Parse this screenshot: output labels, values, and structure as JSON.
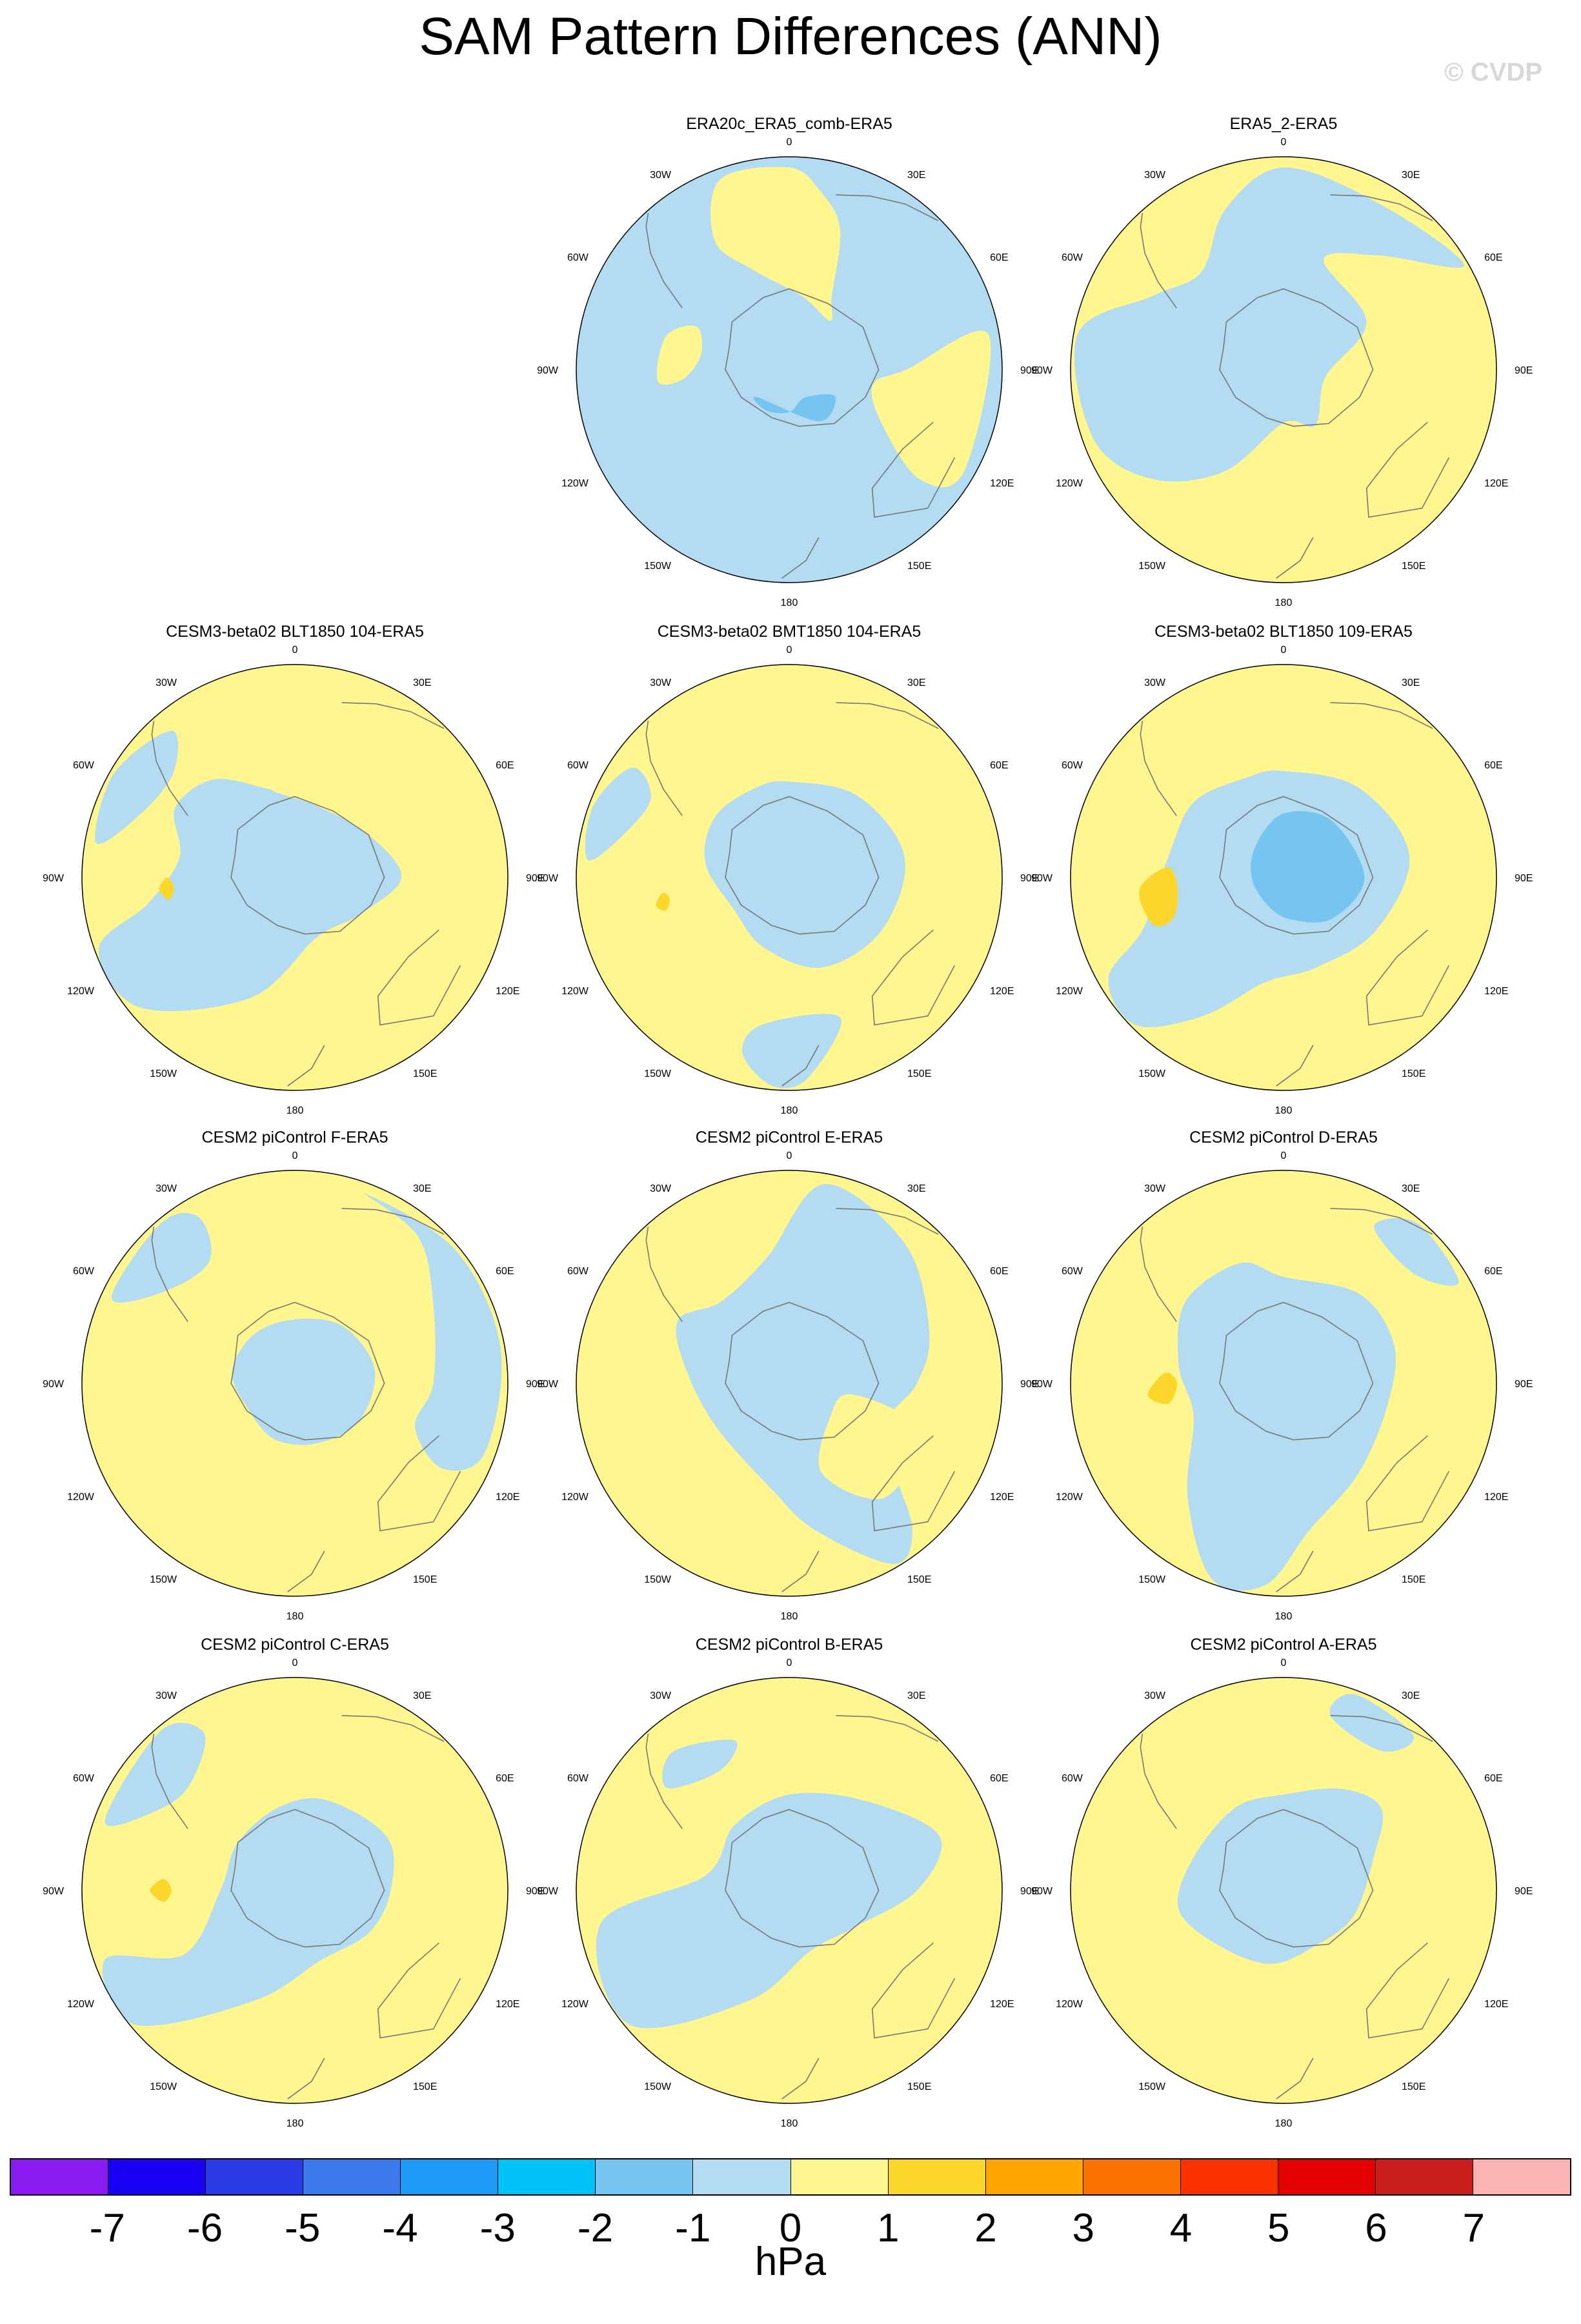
{
  "title": "SAM Pattern Differences (ANN)",
  "watermark": "© CVDP",
  "colors": {
    "neg": "#b3dcf2",
    "pos": "#fff68f",
    "neg2": "#75c5f0",
    "pos2": "#fdd62c",
    "coast": "#777777"
  },
  "lon_labels": [
    "0",
    "30E",
    "60E",
    "90E",
    "120E",
    "150E",
    "180",
    "150W",
    "120W",
    "90W",
    "60W",
    "30W"
  ],
  "panels": [
    {
      "title": "ERA20c_ERA5_comb-ERA5",
      "base": "neg",
      "blobs": [
        {
          "c": "pos",
          "pts": [
            [
              0,
              0.95
            ],
            [
              10,
              0.85
            ],
            [
              20,
              0.7
            ],
            [
              30,
              0.4
            ],
            [
              40,
              0.3
            ],
            [
              10,
              0.35
            ],
            [
              -20,
              0.5
            ],
            [
              -30,
              0.7
            ],
            [
              -20,
              0.95
            ]
          ]
        },
        {
          "c": "pos",
          "pts": [
            [
              80,
              0.95
            ],
            [
              90,
              0.55
            ],
            [
              100,
              0.4
            ],
            [
              120,
              0.5
            ],
            [
              130,
              0.8
            ],
            [
              120,
              0.95
            ]
          ]
        },
        {
          "c": "pos",
          "pts": [
            [
              -95,
              0.5
            ],
            [
              -80,
              0.42
            ],
            [
              -65,
              0.48
            ],
            [
              -75,
              0.6
            ],
            [
              -95,
              0.62
            ]
          ]
        },
        {
          "c": "neg2",
          "pts": [
            [
              120,
              0.25
            ],
            [
              150,
              0.15
            ],
            [
              180,
              0.2
            ],
            [
              -150,
              0.22
            ],
            [
              -130,
              0.2
            ],
            [
              150,
              0.28
            ]
          ]
        }
      ]
    },
    {
      "title": "ERA5_2-ERA5",
      "base": "pos",
      "blobs": [
        {
          "c": "neg",
          "pts": [
            [
              0,
              0.95
            ],
            [
              30,
              0.9
            ],
            [
              60,
              0.98
            ],
            [
              40,
              0.7
            ],
            [
              20,
              0.55
            ],
            [
              60,
              0.45
            ],
            [
              100,
              0.2
            ],
            [
              150,
              0.3
            ],
            [
              180,
              0.25
            ],
            [
              -150,
              0.55
            ],
            [
              -130,
              0.8
            ],
            [
              -110,
              0.95
            ],
            [
              -80,
              0.98
            ],
            [
              -60,
              0.7
            ],
            [
              -40,
              0.6
            ],
            [
              -20,
              0.8
            ]
          ]
        }
      ]
    },
    {
      "title": "CESM3-beta02 BLT1850 104-ERA5",
      "base": "pos",
      "blobs": [
        {
          "c": "neg",
          "pts": [
            [
              -10,
              0.4
            ],
            [
              20,
              0.35
            ],
            [
              60,
              0.4
            ],
            [
              90,
              0.5
            ],
            [
              120,
              0.35
            ],
            [
              160,
              0.3
            ],
            [
              -160,
              0.6
            ],
            [
              -130,
              0.95
            ],
            [
              -110,
              0.98
            ],
            [
              -100,
              0.7
            ],
            [
              -80,
              0.55
            ],
            [
              -60,
              0.65
            ],
            [
              -40,
              0.6
            ],
            [
              -20,
              0.45
            ]
          ]
        },
        {
          "c": "neg",
          "pts": [
            [
              -60,
              0.98
            ],
            [
              -40,
              0.9
            ],
            [
              -50,
              0.75
            ],
            [
              -70,
              0.8
            ],
            [
              -80,
              0.95
            ]
          ]
        },
        {
          "c": "pos2",
          "pts": [
            [
              -100,
              0.6
            ],
            [
              -95,
              0.57
            ],
            [
              -90,
              0.6
            ],
            [
              -95,
              0.64
            ]
          ]
        }
      ]
    },
    {
      "title": "CESM3-beta02 BMT1850 104-ERA5",
      "base": "pos",
      "blobs": [
        {
          "c": "neg",
          "pts": [
            [
              0,
              0.45
            ],
            [
              40,
              0.5
            ],
            [
              80,
              0.55
            ],
            [
              120,
              0.5
            ],
            [
              160,
              0.45
            ],
            [
              -160,
              0.35
            ],
            [
              -120,
              0.3
            ],
            [
              -80,
              0.4
            ],
            [
              -50,
              0.45
            ],
            [
              -20,
              0.45
            ]
          ]
        },
        {
          "c": "neg",
          "pts": [
            [
              160,
              0.7
            ],
            [
              175,
              0.95
            ],
            [
              -175,
              0.98
            ],
            [
              -165,
              0.85
            ],
            [
              -170,
              0.7
            ]
          ]
        },
        {
          "c": "neg",
          "pts": [
            [
              -70,
              0.98
            ],
            [
              -55,
              0.9
            ],
            [
              -60,
              0.75
            ],
            [
              -75,
              0.8
            ],
            [
              -85,
              0.95
            ]
          ]
        },
        {
          "c": "pos2",
          "pts": [
            [
              -105,
              0.6
            ],
            [
              -100,
              0.57
            ],
            [
              -97,
              0.6
            ],
            [
              -102,
              0.64
            ]
          ]
        }
      ]
    },
    {
      "title": "CESM3-beta02 BLT1850 109-ERA5",
      "base": "pos",
      "blobs": [
        {
          "c": "neg",
          "pts": [
            [
              0,
              0.5
            ],
            [
              40,
              0.55
            ],
            [
              80,
              0.6
            ],
            [
              120,
              0.5
            ],
            [
              160,
              0.45
            ],
            [
              -170,
              0.5
            ],
            [
              -150,
              0.75
            ],
            [
              -135,
              0.98
            ],
            [
              -120,
              0.95
            ],
            [
              -110,
              0.7
            ],
            [
              -80,
              0.55
            ],
            [
              -50,
              0.55
            ],
            [
              -20,
              0.5
            ]
          ]
        },
        {
          "c": "neg2",
          "pts": [
            [
              0,
              0.3
            ],
            [
              40,
              0.35
            ],
            [
              90,
              0.38
            ],
            [
              130,
              0.3
            ],
            [
              170,
              0.2
            ],
            [
              -150,
              0.15
            ],
            [
              -90,
              0.15
            ],
            [
              -40,
              0.2
            ]
          ]
        },
        {
          "c": "pos2",
          "pts": [
            [
              -110,
              0.55
            ],
            [
              -95,
              0.5
            ],
            [
              -85,
              0.55
            ],
            [
              -95,
              0.68
            ],
            [
              -110,
              0.65
            ]
          ]
        }
      ]
    },
    {
      "title": "CESM2 piControl F-ERA5",
      "base": "pos",
      "blobs": [
        {
          "c": "neg",
          "pts": [
            [
              20,
              0.95
            ],
            [
              40,
              0.9
            ],
            [
              60,
              0.75
            ],
            [
              90,
              0.65
            ],
            [
              110,
              0.6
            ],
            [
              120,
              0.8
            ],
            [
              110,
              0.95
            ],
            [
              80,
              0.98
            ],
            [
              50,
              0.98
            ]
          ]
        },
        {
          "c": "neg",
          "pts": [
            [
              0,
              0.3
            ],
            [
              40,
              0.35
            ],
            [
              80,
              0.38
            ],
            [
              120,
              0.35
            ],
            [
              160,
              0.3
            ],
            [
              -160,
              0.28
            ],
            [
              -120,
              0.25
            ],
            [
              -80,
              0.3
            ],
            [
              -40,
              0.3
            ]
          ]
        },
        {
          "c": "neg",
          "pts": [
            [
              -40,
              0.98
            ],
            [
              -30,
              0.9
            ],
            [
              -35,
              0.7
            ],
            [
              -55,
              0.75
            ],
            [
              -65,
              0.95
            ]
          ]
        }
      ]
    },
    {
      "title": "CESM2 piControl E-ERA5",
      "base": "pos",
      "blobs": [
        {
          "c": "neg",
          "pts": [
            [
              10,
              0.95
            ],
            [
              40,
              0.85
            ],
            [
              70,
              0.7
            ],
            [
              90,
              0.6
            ],
            [
              110,
              0.5
            ],
            [
              130,
              0.65
            ],
            [
              140,
              0.9
            ],
            [
              150,
              0.98
            ],
            [
              170,
              0.7
            ],
            [
              -170,
              0.5
            ],
            [
              -120,
              0.4
            ],
            [
              -80,
              0.5
            ],
            [
              -60,
              0.6
            ],
            [
              -40,
              0.5
            ],
            [
              -10,
              0.6
            ]
          ]
        },
        {
          "c": "pos",
          "pts": [
            [
              100,
              0.3
            ],
            [
              130,
              0.25
            ],
            [
              160,
              0.45
            ],
            [
              140,
              0.7
            ],
            [
              110,
              0.65
            ]
          ]
        }
      ]
    },
    {
      "title": "CESM2 piControl D-ERA5",
      "base": "pos",
      "blobs": [
        {
          "c": "neg",
          "pts": [
            [
              0,
              0.5
            ],
            [
              40,
              0.55
            ],
            [
              70,
              0.55
            ],
            [
              100,
              0.5
            ],
            [
              140,
              0.55
            ],
            [
              170,
              0.7
            ],
            [
              -175,
              0.95
            ],
            [
              -160,
              0.98
            ],
            [
              -140,
              0.7
            ],
            [
              -110,
              0.45
            ],
            [
              -80,
              0.5
            ],
            [
              -50,
              0.6
            ],
            [
              -20,
              0.6
            ]
          ]
        },
        {
          "c": "neg",
          "pts": [
            [
              40,
              0.98
            ],
            [
              60,
              0.95
            ],
            [
              50,
              0.8
            ],
            [
              30,
              0.85
            ]
          ]
        },
        {
          "c": "pos2",
          "pts": [
            [
              -100,
              0.55
            ],
            [
              -90,
              0.5
            ],
            [
              -85,
              0.56
            ],
            [
              -95,
              0.64
            ]
          ]
        }
      ]
    },
    {
      "title": "CESM2 piControl C-ERA5",
      "base": "pos",
      "blobs": [
        {
          "c": "neg",
          "pts": [
            [
              -10,
              0.4
            ],
            [
              20,
              0.45
            ],
            [
              60,
              0.5
            ],
            [
              90,
              0.45
            ],
            [
              120,
              0.4
            ],
            [
              160,
              0.35
            ],
            [
              -160,
              0.55
            ],
            [
              -130,
              0.98
            ],
            [
              -110,
              0.95
            ],
            [
              -120,
              0.6
            ],
            [
              -90,
              0.35
            ],
            [
              -50,
              0.35
            ]
          ]
        },
        {
          "c": "neg",
          "pts": [
            [
              -40,
              0.98
            ],
            [
              -30,
              0.85
            ],
            [
              -45,
              0.7
            ],
            [
              -60,
              0.75
            ],
            [
              -70,
              0.95
            ]
          ]
        },
        {
          "c": "pos2",
          "pts": [
            [
              -95,
              0.62
            ],
            [
              -90,
              0.58
            ],
            [
              -85,
              0.62
            ],
            [
              -90,
              0.68
            ]
          ]
        }
      ]
    },
    {
      "title": "CESM2 piControl B-ERA5",
      "base": "pos",
      "blobs": [
        {
          "c": "neg",
          "pts": [
            [
              0,
              0.45
            ],
            [
              40,
              0.55
            ],
            [
              70,
              0.75
            ],
            [
              90,
              0.6
            ],
            [
              120,
              0.35
            ],
            [
              160,
              0.3
            ],
            [
              -160,
              0.55
            ],
            [
              -130,
              0.98
            ],
            [
              -100,
              0.9
            ],
            [
              -80,
              0.4
            ],
            [
              -40,
              0.4
            ]
          ]
        },
        {
          "c": "neg",
          "pts": [
            [
              -50,
              0.75
            ],
            [
              -30,
              0.65
            ],
            [
              -20,
              0.75
            ],
            [
              -40,
              0.85
            ]
          ]
        }
      ]
    },
    {
      "title": "CESM2 piControl A-ERA5",
      "base": "pos",
      "blobs": [
        {
          "c": "neg",
          "pts": [
            [
              0,
              0.45
            ],
            [
              30,
              0.55
            ],
            [
              50,
              0.6
            ],
            [
              70,
              0.45
            ],
            [
              110,
              0.35
            ],
            [
              150,
              0.3
            ],
            [
              -170,
              0.35
            ],
            [
              -130,
              0.4
            ],
            [
              -100,
              0.5
            ],
            [
              -70,
              0.45
            ],
            [
              -30,
              0.45
            ]
          ]
        },
        {
          "c": "neg",
          "pts": [
            [
              20,
              0.98
            ],
            [
              40,
              0.95
            ],
            [
              35,
              0.8
            ],
            [
              15,
              0.85
            ]
          ]
        }
      ]
    }
  ],
  "colorbar": {
    "units": "hPa",
    "labels": [
      "-7",
      "-6",
      "-5",
      "-4",
      "-3",
      "-2",
      "-1",
      "0",
      "1",
      "2",
      "3",
      "4",
      "5",
      "6",
      "7"
    ],
    "colors": [
      "#8a1cf2",
      "#1900f2",
      "#2b3ce6",
      "#3a78ec",
      "#1e9bf7",
      "#00c3f8",
      "#75c5f0",
      "#b3dcf2",
      "#fff68f",
      "#fdd62c",
      "#fda700",
      "#fb7200",
      "#fb3300",
      "#e30000",
      "#c91c1c",
      "#fcb3b3"
    ]
  }
}
